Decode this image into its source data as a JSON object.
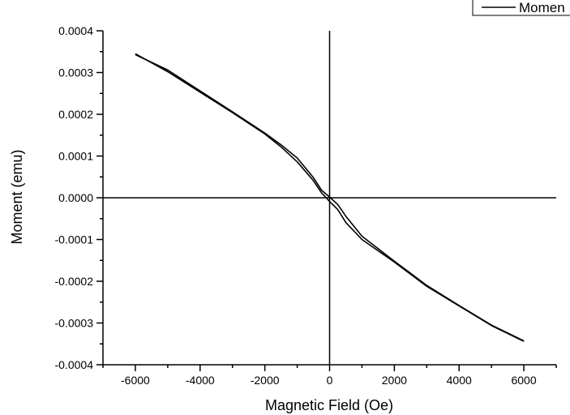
{
  "chart_data": {
    "type": "line",
    "xlabel": "Magnetic Field (Oe)",
    "ylabel": "Moment (emu)",
    "xlim": [
      -7000,
      7000
    ],
    "ylim": [
      -0.0004,
      0.0004
    ],
    "x_ticks": [
      -6000,
      -4000,
      -2000,
      0,
      2000,
      4000,
      6000
    ],
    "x_tick_labels": [
      "-6000",
      "-4000",
      "-2000",
      "0",
      "2000",
      "4000",
      "6000"
    ],
    "y_ticks": [
      -0.0004,
      -0.0003,
      -0.0002,
      -0.0001,
      0,
      0.0001,
      0.0002,
      0.0003,
      0.0004
    ],
    "y_tick_labels": [
      "-0.0004",
      "-0.0003",
      "-0.0002",
      "-0.0001",
      "0.0000",
      "0.0001",
      "0.0002",
      "0.0003",
      "0.0004"
    ],
    "grid": false,
    "legend_position": "top-right",
    "series": [
      {
        "name": "Momen",
        "color": "#000000",
        "x": [
          -6000,
          -5000,
          -4000,
          -3000,
          -2000,
          -1500,
          -1000,
          -500,
          -250,
          0,
          250,
          500,
          1000,
          2000,
          3000,
          4000,
          5000,
          6000
        ],
        "y": [
          0.000343,
          0.000306,
          0.000256,
          0.000206,
          0.000155,
          0.000127,
          9.52e-05,
          4.83e-05,
          1.82e-05,
          1.7e-06,
          -1.6e-05,
          -4.4e-05,
          -9.2e-05,
          -0.000152,
          -0.00021,
          -0.000258,
          -0.000305,
          -0.000343
        ]
      },
      {
        "name": "",
        "color": "#000000",
        "x": [
          -6000,
          -5000,
          -4000,
          -3000,
          -2000,
          -1500,
          -1000,
          -500,
          -250,
          0,
          250,
          500,
          1000,
          2000,
          3000,
          4000,
          5000,
          6000
        ],
        "y": [
          0.000345,
          0.000302,
          0.000253,
          0.000204,
          0.000153,
          0.000122,
          8.6e-05,
          4.1e-05,
          1.2e-05,
          -9e-06,
          -2.8e-05,
          -5.9e-05,
          -0.0001,
          -0.000154,
          -0.000212,
          -0.000259,
          -0.000306,
          -0.000344
        ]
      }
    ]
  }
}
